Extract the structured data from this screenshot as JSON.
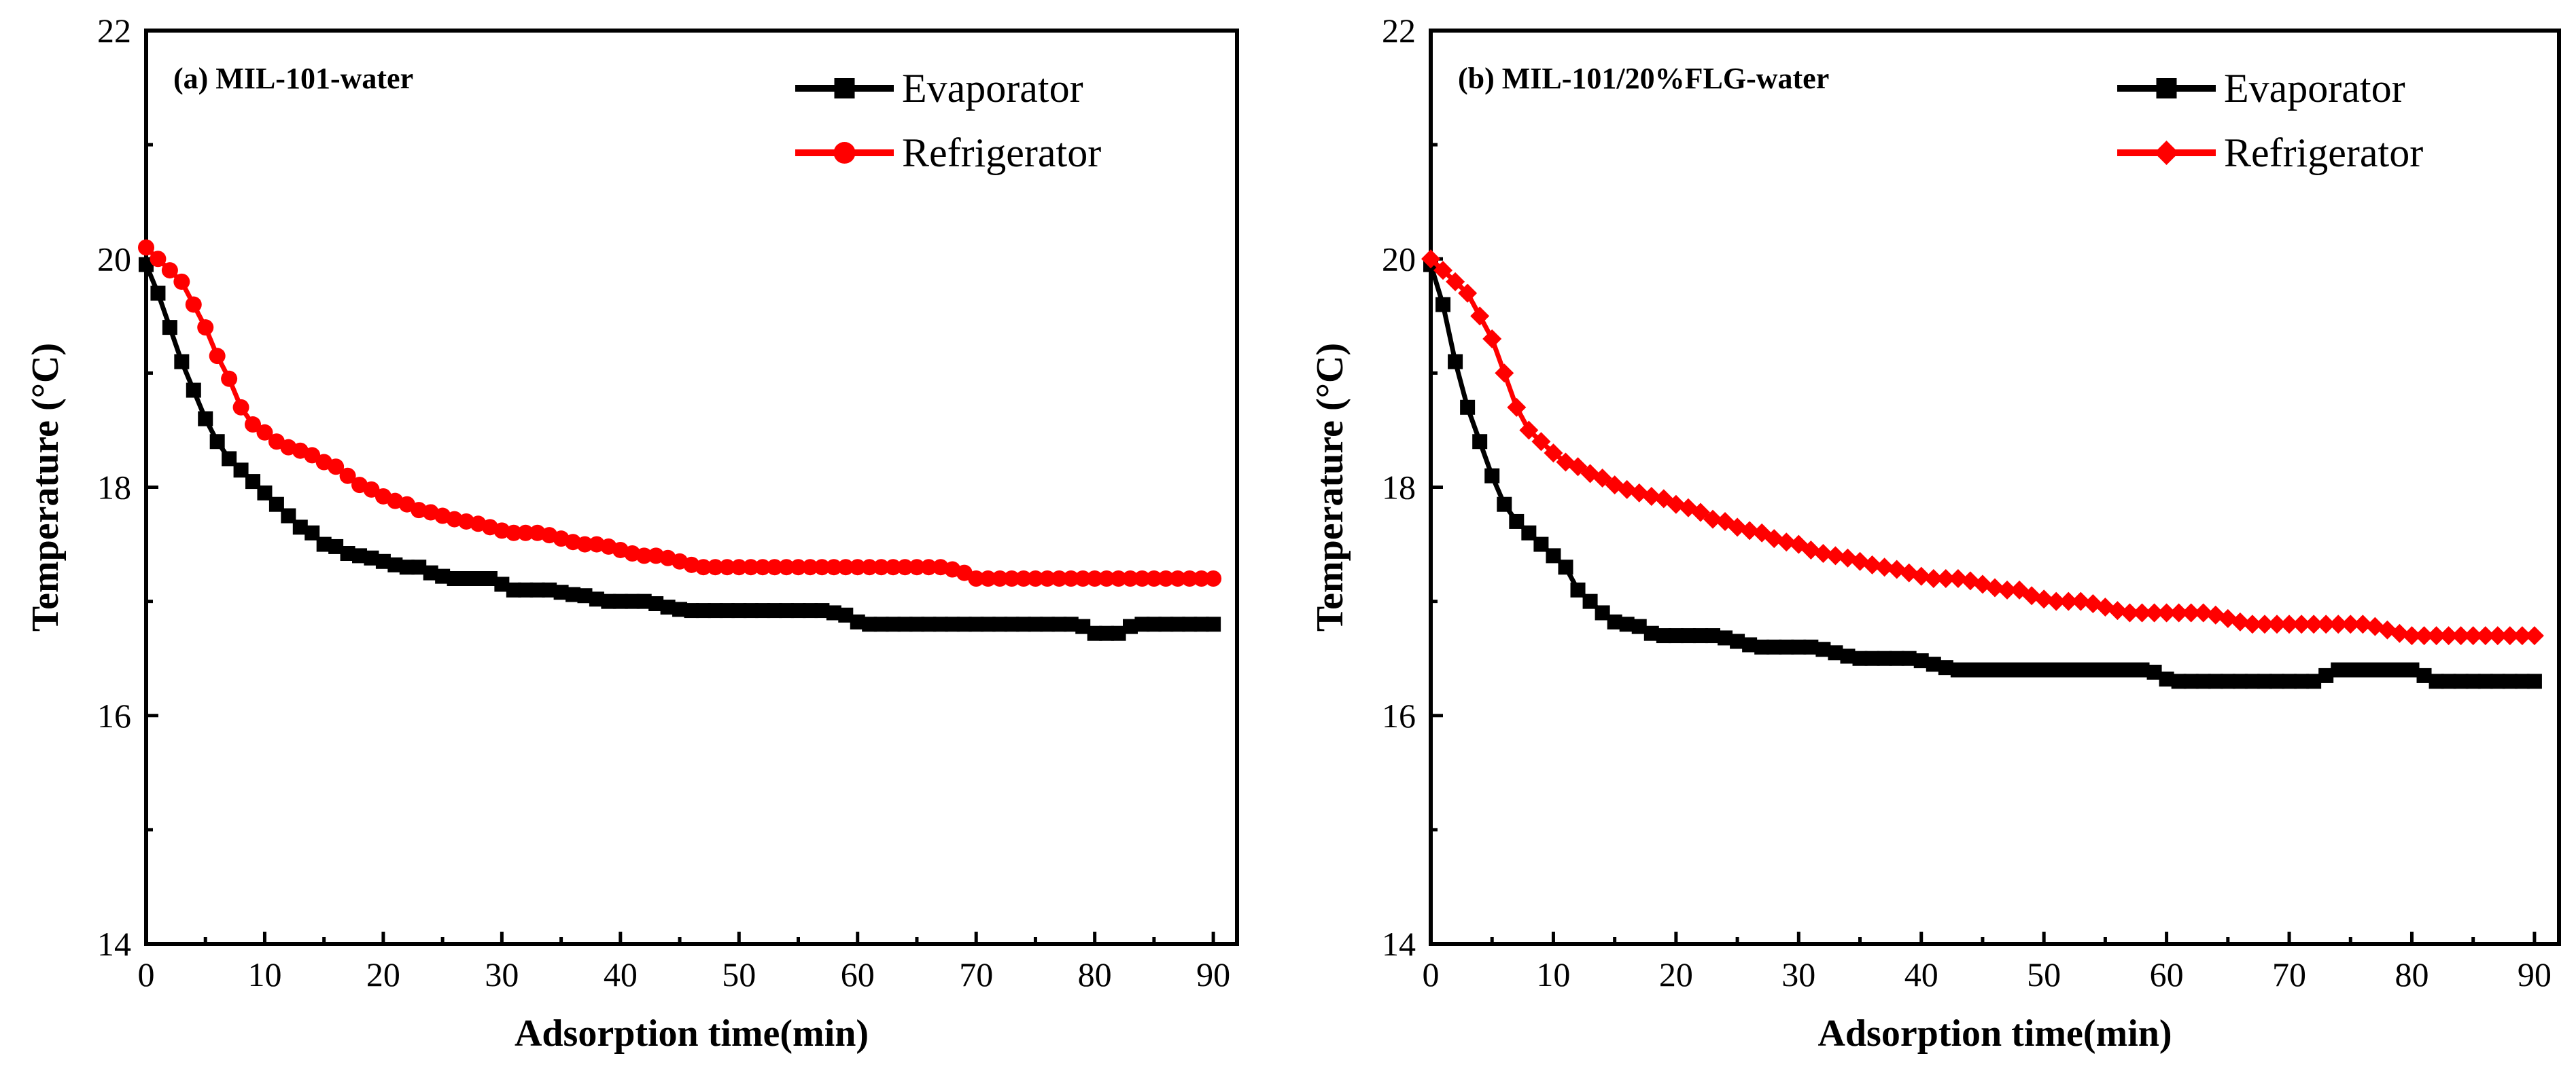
{
  "chart_data": [
    {
      "type": "line",
      "title": "(a) MIL-101-water",
      "xlabel": "Adsorption time(min)",
      "ylabel": "Temperature (°C)",
      "xlim": [
        0,
        92
      ],
      "ylim": [
        14,
        22
      ],
      "xticks": [
        0,
        10,
        20,
        30,
        40,
        50,
        60,
        70,
        80,
        90
      ],
      "yticks": [
        14,
        16,
        18,
        20,
        22
      ],
      "legend": "top-right",
      "series": [
        {
          "name": "Evaporator",
          "color": "#000000",
          "marker": "square",
          "x": [
            0,
            1,
            2,
            3,
            4,
            5,
            6,
            7,
            8,
            9,
            10,
            11,
            12,
            13,
            14,
            15,
            16,
            17,
            18,
            19,
            20,
            21,
            22,
            23,
            24,
            25,
            26,
            27,
            28,
            29,
            30,
            31,
            32,
            33,
            34,
            35,
            36,
            37,
            38,
            39,
            40,
            41,
            42,
            43,
            44,
            45,
            46,
            47,
            48,
            49,
            50,
            51,
            52,
            53,
            54,
            55,
            56,
            57,
            58,
            59,
            60,
            61,
            62,
            63,
            64,
            65,
            66,
            67,
            68,
            69,
            70,
            71,
            72,
            73,
            74,
            75,
            76,
            77,
            78,
            79,
            80,
            81,
            82,
            83,
            84,
            85,
            86,
            87,
            88,
            89,
            90
          ],
          "y": [
            19.95,
            19.7,
            19.4,
            19.1,
            18.85,
            18.6,
            18.4,
            18.25,
            18.15,
            18.05,
            17.95,
            17.85,
            17.75,
            17.65,
            17.6,
            17.5,
            17.48,
            17.42,
            17.4,
            17.38,
            17.35,
            17.32,
            17.3,
            17.3,
            17.25,
            17.22,
            17.2,
            17.2,
            17.2,
            17.2,
            17.15,
            17.1,
            17.1,
            17.1,
            17.1,
            17.08,
            17.06,
            17.05,
            17.02,
            17.0,
            17.0,
            17.0,
            17.0,
            16.98,
            16.95,
            16.93,
            16.92,
            16.92,
            16.92,
            16.92,
            16.92,
            16.92,
            16.92,
            16.92,
            16.92,
            16.92,
            16.92,
            16.92,
            16.9,
            16.88,
            16.82,
            16.8,
            16.8,
            16.8,
            16.8,
            16.8,
            16.8,
            16.8,
            16.8,
            16.8,
            16.8,
            16.8,
            16.8,
            16.8,
            16.8,
            16.8,
            16.8,
            16.8,
            16.8,
            16.78,
            16.72,
            16.72,
            16.72,
            16.78,
            16.8,
            16.8,
            16.8,
            16.8,
            16.8,
            16.8,
            16.8
          ]
        },
        {
          "name": "Refrigerator",
          "color": "#ff0000",
          "marker": "circle",
          "x": [
            0,
            1,
            2,
            3,
            4,
            5,
            6,
            7,
            8,
            9,
            10,
            11,
            12,
            13,
            14,
            15,
            16,
            17,
            18,
            19,
            20,
            21,
            22,
            23,
            24,
            25,
            26,
            27,
            28,
            29,
            30,
            31,
            32,
            33,
            34,
            35,
            36,
            37,
            38,
            39,
            40,
            41,
            42,
            43,
            44,
            45,
            46,
            47,
            48,
            49,
            50,
            51,
            52,
            53,
            54,
            55,
            56,
            57,
            58,
            59,
            60,
            61,
            62,
            63,
            64,
            65,
            66,
            67,
            68,
            69,
            70,
            71,
            72,
            73,
            74,
            75,
            76,
            77,
            78,
            79,
            80,
            81,
            82,
            83,
            84,
            85,
            86,
            87,
            88,
            89,
            90
          ],
          "y": [
            20.1,
            20.0,
            19.9,
            19.8,
            19.6,
            19.4,
            19.15,
            18.95,
            18.7,
            18.55,
            18.48,
            18.4,
            18.35,
            18.32,
            18.28,
            18.22,
            18.18,
            18.1,
            18.02,
            17.98,
            17.92,
            17.88,
            17.85,
            17.8,
            17.78,
            17.75,
            17.72,
            17.7,
            17.68,
            17.65,
            17.62,
            17.6,
            17.6,
            17.6,
            17.58,
            17.55,
            17.52,
            17.5,
            17.5,
            17.48,
            17.45,
            17.42,
            17.4,
            17.4,
            17.38,
            17.35,
            17.32,
            17.3,
            17.3,
            17.3,
            17.3,
            17.3,
            17.3,
            17.3,
            17.3,
            17.3,
            17.3,
            17.3,
            17.3,
            17.3,
            17.3,
            17.3,
            17.3,
            17.3,
            17.3,
            17.3,
            17.3,
            17.3,
            17.28,
            17.25,
            17.2,
            17.2,
            17.2,
            17.2,
            17.2,
            17.2,
            17.2,
            17.2,
            17.2,
            17.2,
            17.2,
            17.2,
            17.2,
            17.2,
            17.2,
            17.2,
            17.2,
            17.2,
            17.2,
            17.2,
            17.2
          ]
        }
      ]
    },
    {
      "type": "line",
      "title": "(b) MIL-101/20%FLG-water",
      "xlabel": "Adsorption time(min)",
      "ylabel": "Temperature (°C)",
      "xlim": [
        0,
        92
      ],
      "ylim": [
        14,
        22
      ],
      "xticks": [
        0,
        10,
        20,
        30,
        40,
        50,
        60,
        70,
        80,
        90
      ],
      "yticks": [
        14,
        16,
        18,
        20,
        22
      ],
      "legend": "top-right",
      "series": [
        {
          "name": "Evaporator",
          "color": "#000000",
          "marker": "square",
          "x": [
            0,
            1,
            2,
            3,
            4,
            5,
            6,
            7,
            8,
            9,
            10,
            11,
            12,
            13,
            14,
            15,
            16,
            17,
            18,
            19,
            20,
            21,
            22,
            23,
            24,
            25,
            26,
            27,
            28,
            29,
            30,
            31,
            32,
            33,
            34,
            35,
            36,
            37,
            38,
            39,
            40,
            41,
            42,
            43,
            44,
            45,
            46,
            47,
            48,
            49,
            50,
            51,
            52,
            53,
            54,
            55,
            56,
            57,
            58,
            59,
            60,
            61,
            62,
            63,
            64,
            65,
            66,
            67,
            68,
            69,
            70,
            71,
            72,
            73,
            74,
            75,
            76,
            77,
            78,
            79,
            80,
            81,
            82,
            83,
            84,
            85,
            86,
            87,
            88,
            89,
            90
          ],
          "y": [
            19.95,
            19.6,
            19.1,
            18.7,
            18.4,
            18.1,
            17.85,
            17.7,
            17.6,
            17.5,
            17.4,
            17.3,
            17.1,
            17.0,
            16.9,
            16.82,
            16.8,
            16.78,
            16.72,
            16.7,
            16.7,
            16.7,
            16.7,
            16.7,
            16.68,
            16.65,
            16.62,
            16.6,
            16.6,
            16.6,
            16.6,
            16.6,
            16.58,
            16.55,
            16.52,
            16.5,
            16.5,
            16.5,
            16.5,
            16.5,
            16.48,
            16.45,
            16.42,
            16.4,
            16.4,
            16.4,
            16.4,
            16.4,
            16.4,
            16.4,
            16.4,
            16.4,
            16.4,
            16.4,
            16.4,
            16.4,
            16.4,
            16.4,
            16.4,
            16.38,
            16.32,
            16.3,
            16.3,
            16.3,
            16.3,
            16.3,
            16.3,
            16.3,
            16.3,
            16.3,
            16.3,
            16.3,
            16.3,
            16.35,
            16.4,
            16.4,
            16.4,
            16.4,
            16.4,
            16.4,
            16.4,
            16.35,
            16.3,
            16.3,
            16.3,
            16.3,
            16.3,
            16.3,
            16.3,
            16.3,
            16.3
          ]
        },
        {
          "name": "Refrigerator",
          "color": "#ff0000",
          "marker": "diamond",
          "x": [
            0,
            1,
            2,
            3,
            4,
            5,
            6,
            7,
            8,
            9,
            10,
            11,
            12,
            13,
            14,
            15,
            16,
            17,
            18,
            19,
            20,
            21,
            22,
            23,
            24,
            25,
            26,
            27,
            28,
            29,
            30,
            31,
            32,
            33,
            34,
            35,
            36,
            37,
            38,
            39,
            40,
            41,
            42,
            43,
            44,
            45,
            46,
            47,
            48,
            49,
            50,
            51,
            52,
            53,
            54,
            55,
            56,
            57,
            58,
            59,
            60,
            61,
            62,
            63,
            64,
            65,
            66,
            67,
            68,
            69,
            70,
            71,
            72,
            73,
            74,
            75,
            76,
            77,
            78,
            79,
            80,
            81,
            82,
            83,
            84,
            85,
            86,
            87,
            88,
            89,
            90
          ],
          "y": [
            20.0,
            19.9,
            19.8,
            19.7,
            19.5,
            19.3,
            19.0,
            18.7,
            18.5,
            18.4,
            18.3,
            18.22,
            18.18,
            18.12,
            18.08,
            18.02,
            17.98,
            17.95,
            17.92,
            17.9,
            17.85,
            17.82,
            17.78,
            17.72,
            17.7,
            17.65,
            17.62,
            17.6,
            17.55,
            17.52,
            17.5,
            17.45,
            17.42,
            17.4,
            17.38,
            17.35,
            17.32,
            17.3,
            17.28,
            17.25,
            17.22,
            17.2,
            17.2,
            17.2,
            17.18,
            17.15,
            17.12,
            17.1,
            17.1,
            17.05,
            17.02,
            17.0,
            17.0,
            17.0,
            16.98,
            16.95,
            16.92,
            16.9,
            16.9,
            16.9,
            16.9,
            16.9,
            16.9,
            16.9,
            16.88,
            16.85,
            16.82,
            16.8,
            16.8,
            16.8,
            16.8,
            16.8,
            16.8,
            16.8,
            16.8,
            16.8,
            16.8,
            16.78,
            16.75,
            16.72,
            16.7,
            16.7,
            16.7,
            16.7,
            16.7,
            16.7,
            16.7,
            16.7,
            16.7,
            16.7,
            16.7
          ]
        }
      ]
    }
  ]
}
